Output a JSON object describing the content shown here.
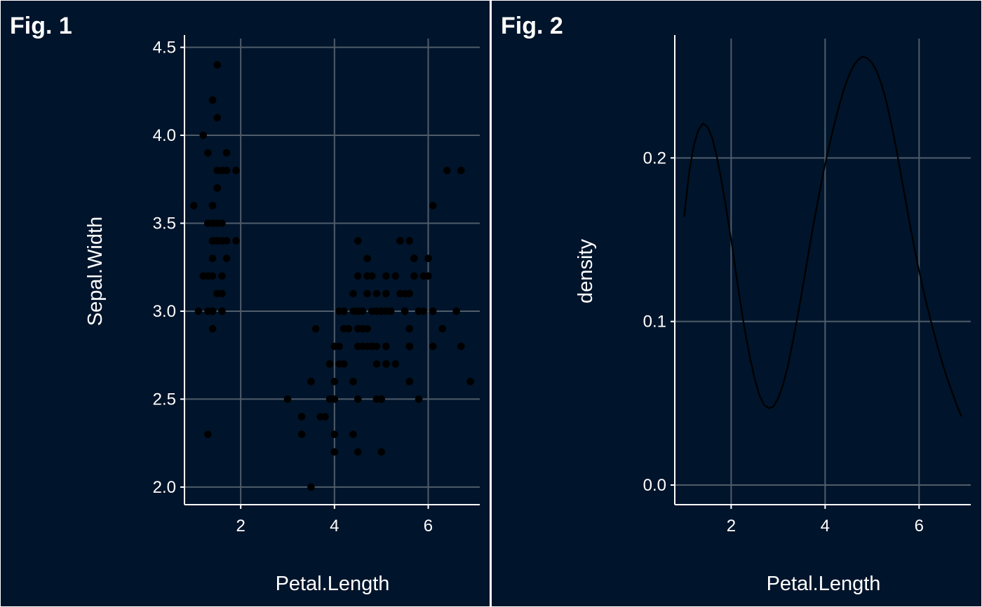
{
  "colors": {
    "panel_background": "#00142b",
    "panel_border": "#ffffff",
    "separator": "#ffffff",
    "grid": "#4f5d6b",
    "axis": "#ffffff",
    "text": "#ffffff",
    "marks": "#000000"
  },
  "chart_data": [
    {
      "type": "scatter",
      "tag": "Fig. 1",
      "xlabel": "Petal.Length",
      "ylabel": "Sepal.Width",
      "xlim": [
        0.8,
        7.1
      ],
      "ylim": [
        1.9,
        4.55
      ],
      "xticks": [
        2,
        4,
        6
      ],
      "yticks": [
        2.0,
        2.5,
        3.0,
        3.5,
        4.0,
        4.5
      ],
      "ytick_labels": [
        "2.0",
        "2.5",
        "3.0",
        "3.5",
        "4.0",
        "4.5"
      ],
      "grid": true,
      "points": [
        [
          1.4,
          3.5
        ],
        [
          1.4,
          3.0
        ],
        [
          1.3,
          3.2
        ],
        [
          1.5,
          3.1
        ],
        [
          1.4,
          3.6
        ],
        [
          1.7,
          3.9
        ],
        [
          1.4,
          3.4
        ],
        [
          1.5,
          3.4
        ],
        [
          1.4,
          2.9
        ],
        [
          1.5,
          3.1
        ],
        [
          1.5,
          3.7
        ],
        [
          1.6,
          3.4
        ],
        [
          1.4,
          3.0
        ],
        [
          1.1,
          3.0
        ],
        [
          1.2,
          4.0
        ],
        [
          1.5,
          4.4
        ],
        [
          1.3,
          3.9
        ],
        [
          1.4,
          3.5
        ],
        [
          1.7,
          3.8
        ],
        [
          1.5,
          3.8
        ],
        [
          1.7,
          3.4
        ],
        [
          1.5,
          3.7
        ],
        [
          1.0,
          3.6
        ],
        [
          1.7,
          3.3
        ],
        [
          1.9,
          3.4
        ],
        [
          1.6,
          3.0
        ],
        [
          1.6,
          3.4
        ],
        [
          1.5,
          3.5
        ],
        [
          1.4,
          3.4
        ],
        [
          1.6,
          3.2
        ],
        [
          1.6,
          3.1
        ],
        [
          1.5,
          3.4
        ],
        [
          1.5,
          4.1
        ],
        [
          1.4,
          4.2
        ],
        [
          1.5,
          3.1
        ],
        [
          1.2,
          3.2
        ],
        [
          1.3,
          3.5
        ],
        [
          1.4,
          3.6
        ],
        [
          1.3,
          3.0
        ],
        [
          1.5,
          3.4
        ],
        [
          1.3,
          3.5
        ],
        [
          1.3,
          2.3
        ],
        [
          1.3,
          3.2
        ],
        [
          1.6,
          3.5
        ],
        [
          1.9,
          3.8
        ],
        [
          1.4,
          3.0
        ],
        [
          1.6,
          3.8
        ],
        [
          1.4,
          3.2
        ],
        [
          1.5,
          3.7
        ],
        [
          1.4,
          3.3
        ],
        [
          4.7,
          3.2
        ],
        [
          4.5,
          3.2
        ],
        [
          4.9,
          3.1
        ],
        [
          4.0,
          2.3
        ],
        [
          4.6,
          2.8
        ],
        [
          4.5,
          2.8
        ],
        [
          4.7,
          3.3
        ],
        [
          3.3,
          2.4
        ],
        [
          4.6,
          2.9
        ],
        [
          3.9,
          2.7
        ],
        [
          3.5,
          2.0
        ],
        [
          4.2,
          3.0
        ],
        [
          4.0,
          2.2
        ],
        [
          4.7,
          2.9
        ],
        [
          3.6,
          2.9
        ],
        [
          4.4,
          3.1
        ],
        [
          4.5,
          3.0
        ],
        [
          4.1,
          2.7
        ],
        [
          4.5,
          2.2
        ],
        [
          3.9,
          2.5
        ],
        [
          4.8,
          3.2
        ],
        [
          4.0,
          2.8
        ],
        [
          4.9,
          2.5
        ],
        [
          4.7,
          2.8
        ],
        [
          4.3,
          2.9
        ],
        [
          4.4,
          3.0
        ],
        [
          4.8,
          2.8
        ],
        [
          5.0,
          3.0
        ],
        [
          4.5,
          2.9
        ],
        [
          3.5,
          2.6
        ],
        [
          3.8,
          2.4
        ],
        [
          3.7,
          2.4
        ],
        [
          3.9,
          2.7
        ],
        [
          5.1,
          2.7
        ],
        [
          4.5,
          3.0
        ],
        [
          4.5,
          3.4
        ],
        [
          4.7,
          3.1
        ],
        [
          4.4,
          2.3
        ],
        [
          4.1,
          3.0
        ],
        [
          4.0,
          2.5
        ],
        [
          4.4,
          2.6
        ],
        [
          4.6,
          3.0
        ],
        [
          4.0,
          2.6
        ],
        [
          3.3,
          2.3
        ],
        [
          4.2,
          2.7
        ],
        [
          4.2,
          3.0
        ],
        [
          4.2,
          2.9
        ],
        [
          4.3,
          2.9
        ],
        [
          3.0,
          2.5
        ],
        [
          4.1,
          2.8
        ],
        [
          6.0,
          3.3
        ],
        [
          5.1,
          2.7
        ],
        [
          5.9,
          3.0
        ],
        [
          5.6,
          2.9
        ],
        [
          5.8,
          3.0
        ],
        [
          6.6,
          3.0
        ],
        [
          4.5,
          2.5
        ],
        [
          6.3,
          2.9
        ],
        [
          5.8,
          2.5
        ],
        [
          6.1,
          3.6
        ],
        [
          5.1,
          3.2
        ],
        [
          5.3,
          2.7
        ],
        [
          5.5,
          3.0
        ],
        [
          5.0,
          2.5
        ],
        [
          5.1,
          2.8
        ],
        [
          5.3,
          3.2
        ],
        [
          5.5,
          3.0
        ],
        [
          6.7,
          3.8
        ],
        [
          6.9,
          2.6
        ],
        [
          5.0,
          2.2
        ],
        [
          5.7,
          3.2
        ],
        [
          4.9,
          2.8
        ],
        [
          6.7,
          2.8
        ],
        [
          4.9,
          2.7
        ],
        [
          5.7,
          3.3
        ],
        [
          6.0,
          3.2
        ],
        [
          4.8,
          2.8
        ],
        [
          4.9,
          3.0
        ],
        [
          5.6,
          2.8
        ],
        [
          5.8,
          3.0
        ],
        [
          6.1,
          2.8
        ],
        [
          6.4,
          3.8
        ],
        [
          5.6,
          2.8
        ],
        [
          5.1,
          2.8
        ],
        [
          5.6,
          2.6
        ],
        [
          6.1,
          3.0
        ],
        [
          5.6,
          3.4
        ],
        [
          5.5,
          3.1
        ],
        [
          4.8,
          3.0
        ],
        [
          5.4,
          3.1
        ],
        [
          5.6,
          3.1
        ],
        [
          5.1,
          3.1
        ],
        [
          5.1,
          2.7
        ],
        [
          5.9,
          3.2
        ],
        [
          5.7,
          3.3
        ],
        [
          5.2,
          3.0
        ],
        [
          5.0,
          2.5
        ],
        [
          5.2,
          3.0
        ],
        [
          5.4,
          3.4
        ],
        [
          5.1,
          3.0
        ]
      ]
    },
    {
      "type": "line",
      "tag": "Fig. 2",
      "xlabel": "Petal.Length",
      "ylabel": "density",
      "xlim": [
        0.8,
        7.1
      ],
      "ylim": [
        -0.012,
        0.273
      ],
      "xticks": [
        2,
        4,
        6
      ],
      "yticks": [
        0.0,
        0.1,
        0.2
      ],
      "ytick_labels": [
        "0.0",
        "0.1",
        "0.2"
      ],
      "grid": true,
      "curve": [
        [
          1.0,
          0.164
        ],
        [
          1.1,
          0.19
        ],
        [
          1.2,
          0.207
        ],
        [
          1.3,
          0.217
        ],
        [
          1.4,
          0.221
        ],
        [
          1.5,
          0.219
        ],
        [
          1.6,
          0.212
        ],
        [
          1.7,
          0.2
        ],
        [
          1.8,
          0.185
        ],
        [
          1.9,
          0.168
        ],
        [
          2.0,
          0.15
        ],
        [
          2.1,
          0.13
        ],
        [
          2.2,
          0.111
        ],
        [
          2.3,
          0.093
        ],
        [
          2.4,
          0.078
        ],
        [
          2.5,
          0.065
        ],
        [
          2.6,
          0.055
        ],
        [
          2.7,
          0.049
        ],
        [
          2.8,
          0.047
        ],
        [
          2.9,
          0.048
        ],
        [
          3.0,
          0.053
        ],
        [
          3.1,
          0.061
        ],
        [
          3.2,
          0.072
        ],
        [
          3.3,
          0.086
        ],
        [
          3.4,
          0.101
        ],
        [
          3.5,
          0.117
        ],
        [
          3.6,
          0.134
        ],
        [
          3.7,
          0.151
        ],
        [
          3.8,
          0.167
        ],
        [
          3.9,
          0.182
        ],
        [
          4.0,
          0.196
        ],
        [
          4.1,
          0.209
        ],
        [
          4.2,
          0.221
        ],
        [
          4.3,
          0.232
        ],
        [
          4.4,
          0.242
        ],
        [
          4.5,
          0.25
        ],
        [
          4.6,
          0.256
        ],
        [
          4.7,
          0.26
        ],
        [
          4.8,
          0.262
        ],
        [
          4.9,
          0.261
        ],
        [
          5.0,
          0.258
        ],
        [
          5.1,
          0.253
        ],
        [
          5.2,
          0.245
        ],
        [
          5.3,
          0.235
        ],
        [
          5.4,
          0.222
        ],
        [
          5.5,
          0.208
        ],
        [
          5.6,
          0.192
        ],
        [
          5.7,
          0.176
        ],
        [
          5.8,
          0.16
        ],
        [
          5.9,
          0.145
        ],
        [
          6.0,
          0.131
        ],
        [
          6.1,
          0.118
        ],
        [
          6.2,
          0.106
        ],
        [
          6.3,
          0.095
        ],
        [
          6.4,
          0.084
        ],
        [
          6.5,
          0.074
        ],
        [
          6.6,
          0.065
        ],
        [
          6.7,
          0.057
        ],
        [
          6.8,
          0.049
        ],
        [
          6.9,
          0.042
        ]
      ]
    }
  ]
}
